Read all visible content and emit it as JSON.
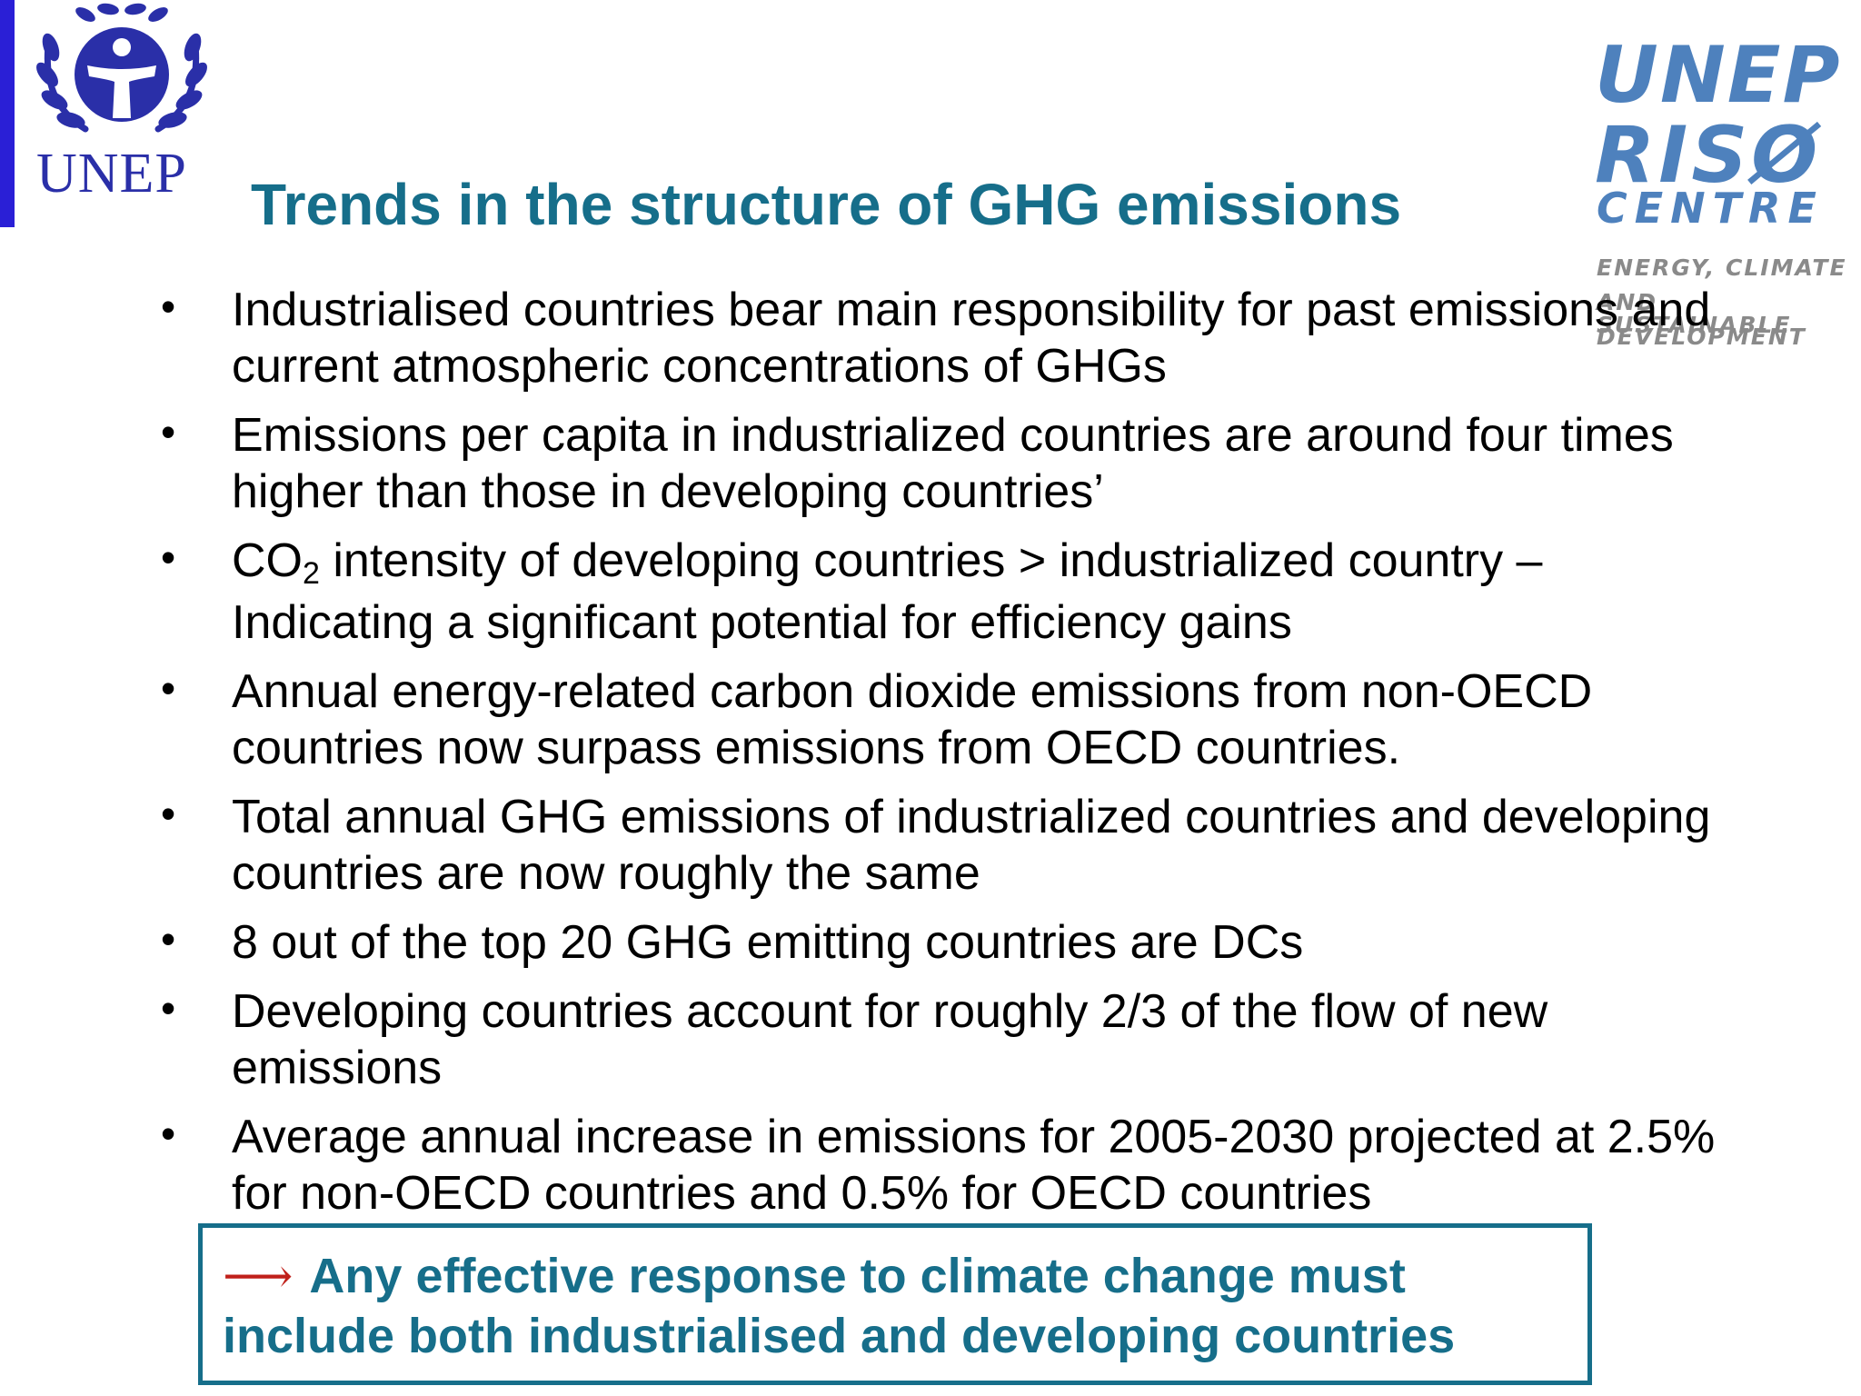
{
  "logos": {
    "unep_left": "UNEP",
    "riso_line1": "UNEP",
    "riso_line2": "RISØ",
    "riso_line3": "CENTRE",
    "riso_tag1": "ENERGY, CLIMATE",
    "riso_tag2": "AND SUSTAINABLE",
    "riso_tag3": "DEVELOPMENT"
  },
  "slide": {
    "title": "Trends in the structure of GHG emissions",
    "bullets": [
      "Industrialised countries bear main responsibility for past emissions and current atmospheric concentrations of GHGs",
      "Emissions per capita in industrialized countries are around four times higher than those in developing countries’",
      {
        "prefix": "CO",
        "sub": "2",
        "rest": " intensity of developing countries > industrialized country – Indicating a significant potential for efficiency gains"
      },
      "Annual energy-related carbon dioxide emissions from non-OECD countries now surpass emissions from OECD countries.",
      "Total annual GHG emissions of industrialized countries and developing countries are now roughly the same",
      "8 out of the top 20 GHG emitting countries are DCs",
      "Developing countries account for roughly 2/3 of the flow of new emissions",
      "Average annual increase in emissions for 2005-2030 projected at 2.5% for non-OECD countries and 0.5% for OECD countries"
    ],
    "callout": {
      "arrow": "⟶",
      "text": "Any effective response to climate change must include both industrialised and developing countries"
    }
  },
  "colors": {
    "title": "#166e8a",
    "left_bar": "#2a1fd6",
    "arrow": "#c0201a",
    "riso_blue": "#4e81bd"
  },
  "icons": {
    "unep_emblem": "unep-laurel-emblem-icon",
    "bullet": "bullet-dot-icon"
  }
}
